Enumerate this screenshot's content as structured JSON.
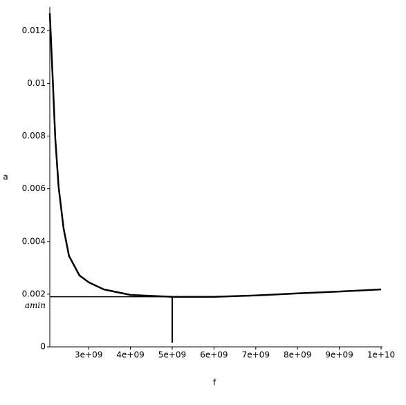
{
  "chart_data": {
    "type": "line",
    "x_label": "f",
    "y_label": "a",
    "x": [
      2070000000,
      2130000000,
      2200000000,
      2280000000,
      2400000000,
      2530000000,
      2780000000,
      3000000000,
      3360000000,
      4000000000,
      5000000000,
      6000000000,
      7000000000,
      8000000000,
      9000000000,
      10000000000
    ],
    "series": [
      {
        "color": "#000000",
        "values": [
          0.01266,
          0.01055,
          0.00792,
          0.00608,
          0.0045,
          0.00345,
          0.00271,
          0.00245,
          0.00218,
          0.00197,
          0.0019,
          0.0019,
          0.00195,
          0.00203,
          0.0021,
          0.00218
        ]
      }
    ],
    "annotation": {
      "label": "amin",
      "x": 5000000000,
      "y": 0.0019
    },
    "xlim": [
      2070000000,
      10000000000
    ],
    "xticks": [
      {
        "value": 3000000000,
        "label": "3e+09"
      },
      {
        "value": 4000000000,
        "label": "4e+09"
      },
      {
        "value": 5000000000,
        "label": "5e+09"
      },
      {
        "value": 6000000000,
        "label": "6e+09"
      },
      {
        "value": 7000000000,
        "label": "7e+09"
      },
      {
        "value": 8000000000,
        "label": "8e+09"
      },
      {
        "value": 9000000000,
        "label": "9e+09"
      },
      {
        "value": 10000000000,
        "label": "1e+10"
      }
    ],
    "ylim": [
      0,
      0.0129
    ],
    "yticks": [
      0,
      0.002,
      0.004,
      0.006,
      0.008,
      0.01,
      0.012
    ]
  }
}
